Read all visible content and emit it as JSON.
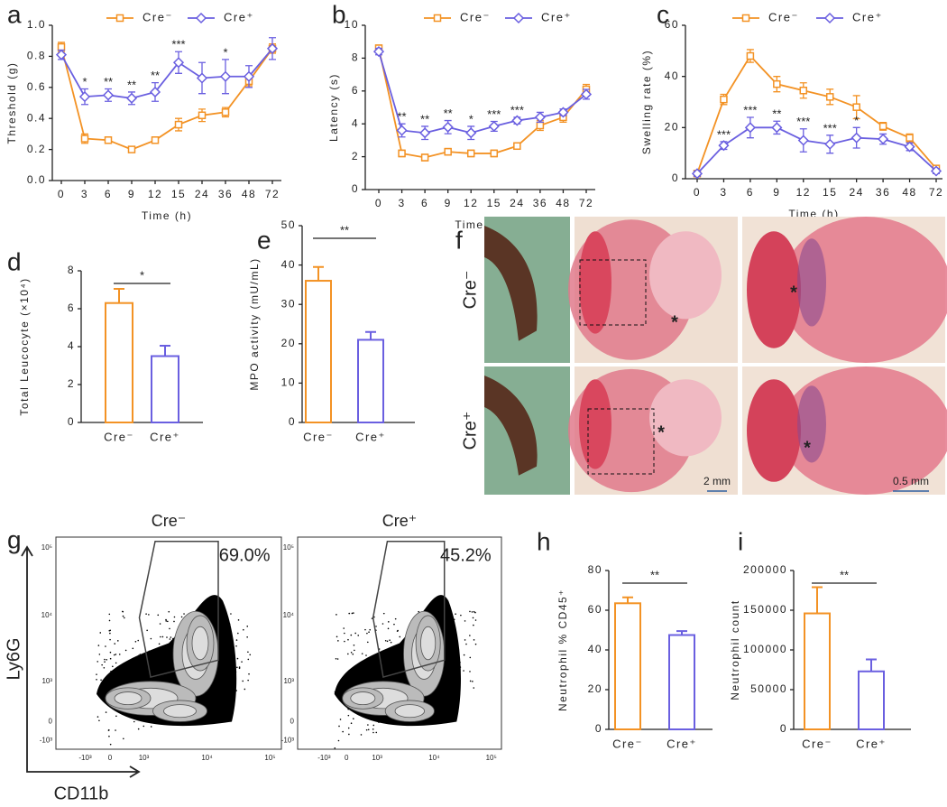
{
  "chart_data": [
    {
      "panel": "a",
      "type": "line",
      "x_label": "Time (h)",
      "y_label": "Threshold (g)",
      "categories": [
        "0",
        "3",
        "6",
        "9",
        "12",
        "15",
        "24",
        "36",
        "48",
        "72"
      ],
      "series": [
        {
          "name": "Cre⁻",
          "color": "#f39224",
          "marker": "square",
          "values": [
            0.86,
            0.27,
            0.26,
            0.2,
            0.26,
            0.36,
            0.42,
            0.44,
            0.64,
            0.85
          ],
          "errors": [
            0.03,
            0.03,
            0.02,
            0.01,
            0.02,
            0.04,
            0.04,
            0.03,
            0.03,
            0.03
          ]
        },
        {
          "name": "Cre⁺",
          "color": "#6a5fe0",
          "marker": "diamond",
          "values": [
            0.81,
            0.54,
            0.55,
            0.53,
            0.57,
            0.76,
            0.66,
            0.67,
            0.67,
            0.85
          ],
          "errors": [
            0.03,
            0.05,
            0.04,
            0.04,
            0.06,
            0.07,
            0.1,
            0.11,
            0.07,
            0.07
          ]
        }
      ],
      "annotations": [
        null,
        "*",
        "**",
        "**",
        "**",
        "***",
        null,
        "*",
        null,
        null
      ],
      "ylim": [
        0,
        1
      ],
      "yticks": [
        {
          "value": 0,
          "label": "0.0"
        },
        0.2,
        0.4,
        0.6,
        0.8,
        {
          "value": 1,
          "label": "1.0"
        }
      ]
    },
    {
      "panel": "b",
      "type": "line",
      "x_label": "Time (h)",
      "y_label": "Latency (s)",
      "categories": [
        "0",
        "3",
        "6",
        "9",
        "12",
        "15",
        "24",
        "36",
        "48",
        "72"
      ],
      "series": [
        {
          "name": "Cre⁻",
          "color": "#f39224",
          "marker": "square",
          "values": [
            8.6,
            2.2,
            1.95,
            2.3,
            2.2,
            2.2,
            2.65,
            3.9,
            4.4,
            6.1
          ],
          "errors": [
            0.2,
            0.2,
            0.2,
            0.2,
            0.2,
            0.2,
            0.2,
            0.3,
            0.3,
            0.3
          ]
        },
        {
          "name": "Cre⁺",
          "color": "#6a5fe0",
          "marker": "diamond",
          "values": [
            8.4,
            3.6,
            3.45,
            3.8,
            3.45,
            3.85,
            4.2,
            4.4,
            4.7,
            5.8
          ],
          "errors": [
            0.2,
            0.4,
            0.4,
            0.4,
            0.4,
            0.3,
            0.2,
            0.3,
            0.2,
            0.3
          ]
        }
      ],
      "annotations": [
        null,
        "**",
        "**",
        "**",
        "*",
        "***",
        "***",
        null,
        null,
        null
      ],
      "ylim": [
        0,
        10
      ],
      "yticks": [
        0,
        2,
        4,
        6,
        8,
        10
      ]
    },
    {
      "panel": "c",
      "type": "line",
      "x_label": "Time (h)",
      "y_label": "Swelling rate (%)",
      "categories": [
        "0",
        "3",
        "6",
        "9",
        "12",
        "15",
        "24",
        "36",
        "48",
        "72"
      ],
      "series": [
        {
          "name": "Cre⁻",
          "color": "#f39224",
          "marker": "square",
          "values": [
            2,
            31,
            48,
            37,
            34.5,
            32,
            28,
            20.5,
            16,
            4
          ],
          "errors": [
            1,
            2,
            2.5,
            3,
            3,
            3,
            4.5,
            1.5,
            1.5,
            1
          ]
        },
        {
          "name": "Cre⁺",
          "color": "#6a5fe0",
          "marker": "diamond",
          "values": [
            2,
            13,
            20,
            20,
            15,
            13.5,
            16,
            15.5,
            12.5,
            3
          ],
          "errors": [
            1,
            1.5,
            4,
            2.5,
            4.5,
            3.5,
            4,
            2,
            1.5,
            1
          ]
        }
      ],
      "annotations": [
        null,
        "***",
        "***",
        "**",
        "***",
        "***",
        "*",
        null,
        null,
        null
      ],
      "ylim": [
        0,
        60
      ],
      "yticks": [
        0,
        20,
        40,
        60
      ]
    },
    {
      "panel": "d",
      "type": "bar",
      "y_label": "Total Leucocyte (×10⁴)",
      "categories": [
        "Cre⁻",
        "Cre⁺"
      ],
      "values": [
        6.3,
        3.5
      ],
      "errors": [
        0.75,
        0.55
      ],
      "colors": [
        "#f39224",
        "#6a5fe0"
      ],
      "significance": "*",
      "ylim": [
        0,
        8
      ],
      "yticks": [
        0,
        2,
        4,
        6,
        8
      ]
    },
    {
      "panel": "e",
      "type": "bar",
      "y_label": "MPO activity (mU/mL)",
      "categories": [
        "Cre⁻",
        "Cre⁺"
      ],
      "values": [
        36,
        21
      ],
      "errors": [
        3.5,
        2
      ],
      "colors": [
        "#f39224",
        "#6a5fe0"
      ],
      "significance": "**",
      "ylim": [
        0,
        50
      ],
      "yticks": [
        0,
        10,
        20,
        30,
        40,
        50
      ]
    },
    {
      "panel": "h",
      "type": "bar",
      "y_label": "Neutrophil % CD45⁺",
      "categories": [
        "Cre⁻",
        "Cre⁺"
      ],
      "values": [
        63.5,
        47.5
      ],
      "errors": [
        3,
        2
      ],
      "colors": [
        "#f39224",
        "#6a5fe0"
      ],
      "significance": "**",
      "ylim": [
        0,
        80
      ],
      "yticks": [
        0,
        20,
        40,
        60,
        80
      ]
    },
    {
      "panel": "i",
      "type": "bar",
      "y_label": "Neutrophil count",
      "categories": [
        "Cre⁻",
        "Cre⁺"
      ],
      "values": [
        146000,
        73000
      ],
      "errors": [
        33000,
        15000
      ],
      "colors": [
        "#f39224",
        "#6a5fe0"
      ],
      "significance": "**",
      "ylim": [
        0,
        200000
      ],
      "yticks": [
        0,
        50000,
        100000,
        150000,
        200000
      ]
    }
  ],
  "histology": {
    "panel": "f",
    "rows": [
      "Cre⁻",
      "Cre⁺"
    ],
    "asterisk": "*",
    "scale_bars": [
      "2 mm",
      "0.5 mm"
    ]
  },
  "flow": {
    "panel": "g",
    "x_axis": "CD11b",
    "y_axis": "Ly6G",
    "yticks": [
      "10⁵",
      "10⁴",
      "10³",
      "0",
      "-10³"
    ],
    "xticks": [
      "-10³",
      "0",
      "10³",
      "10⁴",
      "10⁵"
    ],
    "plots": [
      {
        "title": "Cre⁻",
        "gate": "69.0%"
      },
      {
        "title": "Cre⁺",
        "gate": "45.2%"
      }
    ]
  }
}
